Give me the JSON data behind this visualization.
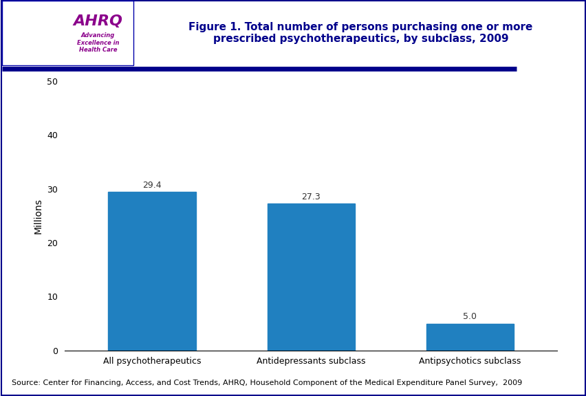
{
  "categories": [
    "All psychotherapeutics",
    "Antidepressants subclass",
    "Antipsychotics subclass"
  ],
  "values": [
    29.4,
    27.3,
    5.0
  ],
  "bar_color": "#2080c0",
  "title_line1": "Figure 1. Total number of persons purchasing one or more",
  "title_line2": "prescribed psychotherapeutics, by subclass, 2009",
  "ylabel": "Millions",
  "ylim": [
    0,
    50
  ],
  "yticks": [
    0,
    10,
    20,
    30,
    40,
    50
  ],
  "source_text": "Source: Center for Financing, Access, and Cost Trends, AHRQ, Household Component of the Medical Expenditure Panel Survey,  2009",
  "title_color": "#00008B",
  "border_color": "#00008B",
  "divider_color": "#00008B",
  "background_color": "#ffffff",
  "bar_label_fontsize": 9,
  "axis_label_fontsize": 10,
  "tick_label_fontsize": 9,
  "title_fontsize": 11,
  "source_fontsize": 8,
  "header_bg": "#cce8f4",
  "logo_border_color": "#0000aa"
}
